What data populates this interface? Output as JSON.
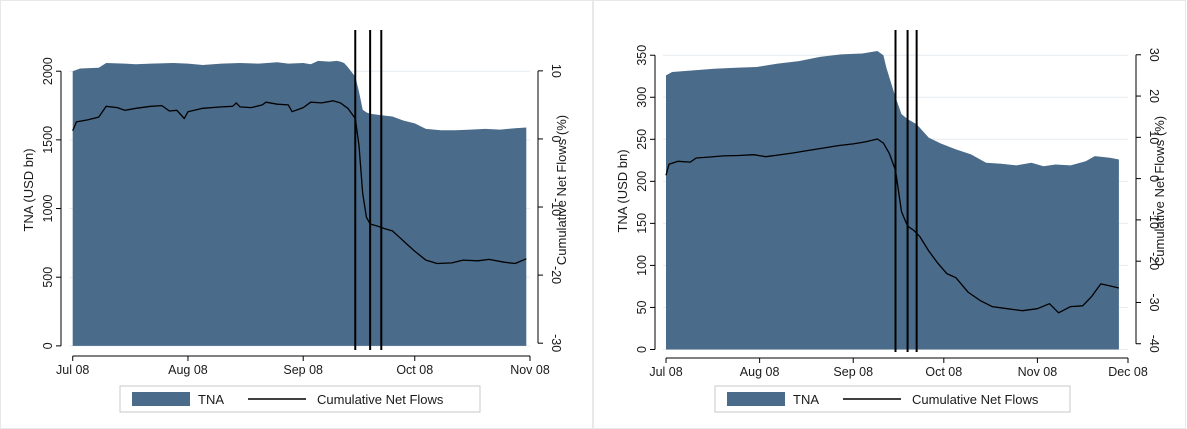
{
  "colors": {
    "tna_fill": "#4a6b8a",
    "flow_line": "#000000",
    "event_line": "#000000",
    "grid": "#e6ecef",
    "axis": "#000000",
    "panel_border": "#e8e8e8"
  },
  "chart_data": [
    {
      "type": "area",
      "x_ticks": [
        {
          "date": "2008-07-01",
          "label": "Jul 08"
        },
        {
          "date": "2008-08-01",
          "label": "Aug 08"
        },
        {
          "date": "2008-09-01",
          "label": "Sep 08"
        },
        {
          "date": "2008-10-01",
          "label": "Oct 08"
        },
        {
          "date": "2008-11-01",
          "label": "Nov 08"
        }
      ],
      "xlim": [
        "2008-06-30",
        "2008-11-01"
      ],
      "ylim_left": [
        -30,
        2300
      ],
      "ylim_right": [
        -31,
        16
      ],
      "y_ticks_left": [
        0,
        500,
        1000,
        1500,
        2000
      ],
      "y_ticks_right": [
        -30,
        -20,
        -10,
        0,
        10
      ],
      "ylabel_left": "TNA (USD bn)",
      "ylabel_right": "Cumulative Net Flows (%)",
      "grid": true,
      "event_dates": [
        "2008-09-15",
        "2008-09-19",
        "2008-09-22"
      ],
      "legend": {
        "position": "bottom",
        "entries": [
          "TNA",
          "Cumulative Net Flows"
        ]
      },
      "series": [
        {
          "name": "TNA",
          "axis": "left",
          "kind": "area",
          "points": [
            [
              "2008-07-01",
              2000
            ],
            [
              "2008-07-03",
              2020
            ],
            [
              "2008-07-08",
              2025
            ],
            [
              "2008-07-10",
              2060
            ],
            [
              "2008-07-15",
              2055
            ],
            [
              "2008-07-18",
              2050
            ],
            [
              "2008-07-22",
              2055
            ],
            [
              "2008-07-28",
              2060
            ],
            [
              "2008-08-01",
              2055
            ],
            [
              "2008-08-05",
              2045
            ],
            [
              "2008-08-10",
              2055
            ],
            [
              "2008-08-15",
              2060
            ],
            [
              "2008-08-20",
              2055
            ],
            [
              "2008-08-25",
              2065
            ],
            [
              "2008-08-28",
              2055
            ],
            [
              "2008-09-01",
              2060
            ],
            [
              "2008-09-03",
              2050
            ],
            [
              "2008-09-05",
              2075
            ],
            [
              "2008-09-08",
              2070
            ],
            [
              "2008-09-10",
              2075
            ],
            [
              "2008-09-11",
              2070
            ],
            [
              "2008-09-12",
              2060
            ],
            [
              "2008-09-13",
              2030
            ],
            [
              "2008-09-15",
              1960
            ],
            [
              "2008-09-16",
              1850
            ],
            [
              "2008-09-17",
              1720
            ],
            [
              "2008-09-18",
              1700
            ],
            [
              "2008-09-19",
              1690
            ],
            [
              "2008-09-22",
              1680
            ],
            [
              "2008-09-25",
              1670
            ],
            [
              "2008-09-28",
              1640
            ],
            [
              "2008-10-01",
              1620
            ],
            [
              "2008-10-04",
              1580
            ],
            [
              "2008-10-08",
              1570
            ],
            [
              "2008-10-12",
              1570
            ],
            [
              "2008-10-16",
              1575
            ],
            [
              "2008-10-20",
              1580
            ],
            [
              "2008-10-24",
              1575
            ],
            [
              "2008-10-28",
              1585
            ],
            [
              "2008-10-31",
              1590
            ]
          ]
        },
        {
          "name": "Cumulative Net Flows",
          "axis": "right",
          "kind": "line",
          "points": [
            [
              "2008-07-01",
              1.2
            ],
            [
              "2008-07-02",
              2.5
            ],
            [
              "2008-07-05",
              2.8
            ],
            [
              "2008-07-08",
              3.2
            ],
            [
              "2008-07-10",
              4.8
            ],
            [
              "2008-07-13",
              4.6
            ],
            [
              "2008-07-15",
              4.2
            ],
            [
              "2008-07-18",
              4.5
            ],
            [
              "2008-07-22",
              4.8
            ],
            [
              "2008-07-25",
              4.9
            ],
            [
              "2008-07-27",
              4.1
            ],
            [
              "2008-07-29",
              4.2
            ],
            [
              "2008-07-31",
              3.0
            ],
            [
              "2008-08-01",
              4.0
            ],
            [
              "2008-08-05",
              4.5
            ],
            [
              "2008-08-10",
              4.7
            ],
            [
              "2008-08-13",
              4.8
            ],
            [
              "2008-08-14",
              5.3
            ],
            [
              "2008-08-15",
              4.7
            ],
            [
              "2008-08-18",
              4.6
            ],
            [
              "2008-08-21",
              5.0
            ],
            [
              "2008-08-22",
              5.4
            ],
            [
              "2008-08-25",
              5.1
            ],
            [
              "2008-08-28",
              5.0
            ],
            [
              "2008-08-29",
              4.0
            ],
            [
              "2008-09-01",
              4.6
            ],
            [
              "2008-09-03",
              5.4
            ],
            [
              "2008-09-06",
              5.3
            ],
            [
              "2008-09-09",
              5.6
            ],
            [
              "2008-09-11",
              5.3
            ],
            [
              "2008-09-13",
              4.5
            ],
            [
              "2008-09-15",
              3.0
            ],
            [
              "2008-09-16",
              -1.0
            ],
            [
              "2008-09-17",
              -8.0
            ],
            [
              "2008-09-18",
              -11.5
            ],
            [
              "2008-09-19",
              -12.5
            ],
            [
              "2008-09-21",
              -12.8
            ],
            [
              "2008-09-23",
              -13.2
            ],
            [
              "2008-09-25",
              -13.5
            ],
            [
              "2008-09-27",
              -14.5
            ],
            [
              "2008-09-29",
              -15.5
            ],
            [
              "2008-10-01",
              -16.5
            ],
            [
              "2008-10-04",
              -17.8
            ],
            [
              "2008-10-07",
              -18.3
            ],
            [
              "2008-10-11",
              -18.2
            ],
            [
              "2008-10-14",
              -17.8
            ],
            [
              "2008-10-18",
              -17.9
            ],
            [
              "2008-10-21",
              -17.7
            ],
            [
              "2008-10-25",
              -18.1
            ],
            [
              "2008-10-28",
              -18.3
            ],
            [
              "2008-10-31",
              -17.6
            ]
          ]
        }
      ]
    },
    {
      "type": "area",
      "x_ticks": [
        {
          "date": "2008-07-01",
          "label": "Jul 08"
        },
        {
          "date": "2008-08-01",
          "label": "Aug 08"
        },
        {
          "date": "2008-09-01",
          "label": "Sep 08"
        },
        {
          "date": "2008-10-01",
          "label": "Oct 08"
        },
        {
          "date": "2008-11-01",
          "label": "Nov 08"
        },
        {
          "date": "2008-12-01",
          "label": "Dec 08"
        }
      ],
      "xlim": [
        "2008-06-30",
        "2008-12-01"
      ],
      "ylim_left": [
        -3,
        380
      ],
      "ylim_right": [
        -42,
        36
      ],
      "y_ticks_left": [
        0,
        50,
        100,
        150,
        200,
        250,
        300,
        350
      ],
      "y_ticks_right": [
        -40,
        -30,
        -20,
        -10,
        0,
        10,
        20,
        30
      ],
      "ylabel_left": "TNA (USD bn)",
      "ylabel_right": "Cumulative Net Flows (%)",
      "grid": true,
      "event_dates": [
        "2008-09-15",
        "2008-09-19",
        "2008-09-22"
      ],
      "legend": {
        "position": "bottom",
        "entries": [
          "TNA",
          "Cumulative Net Flows"
        ]
      },
      "series": [
        {
          "name": "TNA",
          "axis": "left",
          "kind": "area",
          "points": [
            [
              "2008-07-01",
              326
            ],
            [
              "2008-07-03",
              330
            ],
            [
              "2008-07-10",
              332
            ],
            [
              "2008-07-17",
              334
            ],
            [
              "2008-07-24",
              335
            ],
            [
              "2008-07-31",
              336
            ],
            [
              "2008-08-07",
              340
            ],
            [
              "2008-08-14",
              343
            ],
            [
              "2008-08-21",
              348
            ],
            [
              "2008-08-28",
              351
            ],
            [
              "2008-09-04",
              352
            ],
            [
              "2008-09-09",
              355
            ],
            [
              "2008-09-11",
              350
            ],
            [
              "2008-09-12",
              335
            ],
            [
              "2008-09-15",
              300
            ],
            [
              "2008-09-17",
              280
            ],
            [
              "2008-09-19",
              274
            ],
            [
              "2008-09-22",
              268
            ],
            [
              "2008-09-26",
              252
            ],
            [
              "2008-09-30",
              245
            ],
            [
              "2008-10-05",
              238
            ],
            [
              "2008-10-10",
              232
            ],
            [
              "2008-10-15",
              222
            ],
            [
              "2008-10-20",
              221
            ],
            [
              "2008-10-25",
              219
            ],
            [
              "2008-10-30",
              222
            ],
            [
              "2008-11-03",
              218
            ],
            [
              "2008-11-07",
              220
            ],
            [
              "2008-11-12",
              219
            ],
            [
              "2008-11-17",
              224
            ],
            [
              "2008-11-20",
              230
            ],
            [
              "2008-11-25",
              228
            ],
            [
              "2008-11-28",
              226
            ]
          ]
        },
        {
          "name": "Cumulative Net Flows",
          "axis": "right",
          "kind": "line",
          "points": [
            [
              "2008-07-01",
              0.8
            ],
            [
              "2008-07-02",
              3.5
            ],
            [
              "2008-07-05",
              4.2
            ],
            [
              "2008-07-09",
              4.0
            ],
            [
              "2008-07-11",
              5.0
            ],
            [
              "2008-07-15",
              5.2
            ],
            [
              "2008-07-20",
              5.5
            ],
            [
              "2008-07-25",
              5.6
            ],
            [
              "2008-07-30",
              5.8
            ],
            [
              "2008-08-03",
              5.3
            ],
            [
              "2008-08-07",
              5.7
            ],
            [
              "2008-08-12",
              6.2
            ],
            [
              "2008-08-17",
              6.8
            ],
            [
              "2008-08-22",
              7.4
            ],
            [
              "2008-08-27",
              8.0
            ],
            [
              "2008-09-01",
              8.4
            ],
            [
              "2008-09-05",
              8.9
            ],
            [
              "2008-09-09",
              9.6
            ],
            [
              "2008-09-11",
              8.6
            ],
            [
              "2008-09-13",
              6.0
            ],
            [
              "2008-09-15",
              2.0
            ],
            [
              "2008-09-17",
              -8.0
            ],
            [
              "2008-09-19",
              -11.5
            ],
            [
              "2008-09-21",
              -12.5
            ],
            [
              "2008-09-23",
              -14.0
            ],
            [
              "2008-09-26",
              -17.5
            ],
            [
              "2008-09-29",
              -20.5
            ],
            [
              "2008-10-02",
              -23.0
            ],
            [
              "2008-10-05",
              -24.0
            ],
            [
              "2008-10-09",
              -27.5
            ],
            [
              "2008-10-13",
              -29.5
            ],
            [
              "2008-10-17",
              -31.0
            ],
            [
              "2008-10-22",
              -31.5
            ],
            [
              "2008-10-27",
              -32.0
            ],
            [
              "2008-11-01",
              -31.5
            ],
            [
              "2008-11-05",
              -30.3
            ],
            [
              "2008-11-08",
              -32.5
            ],
            [
              "2008-11-12",
              -31.0
            ],
            [
              "2008-11-16",
              -30.8
            ],
            [
              "2008-11-19",
              -28.5
            ],
            [
              "2008-11-22",
              -25.5
            ],
            [
              "2008-11-25",
              -26.0
            ],
            [
              "2008-11-28",
              -26.5
            ]
          ]
        }
      ]
    }
  ]
}
